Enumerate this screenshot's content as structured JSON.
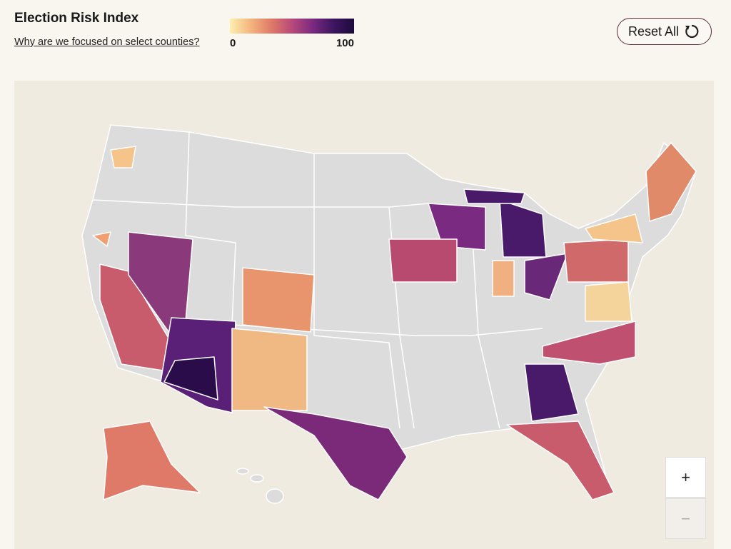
{
  "header": {
    "title": "Election Risk Index",
    "link": "Why are we focused on select counties?"
  },
  "legend": {
    "min": "0",
    "max": "100"
  },
  "controls": {
    "reset": "Reset All",
    "zoom_in": "+",
    "zoom_out": "−"
  }
}
